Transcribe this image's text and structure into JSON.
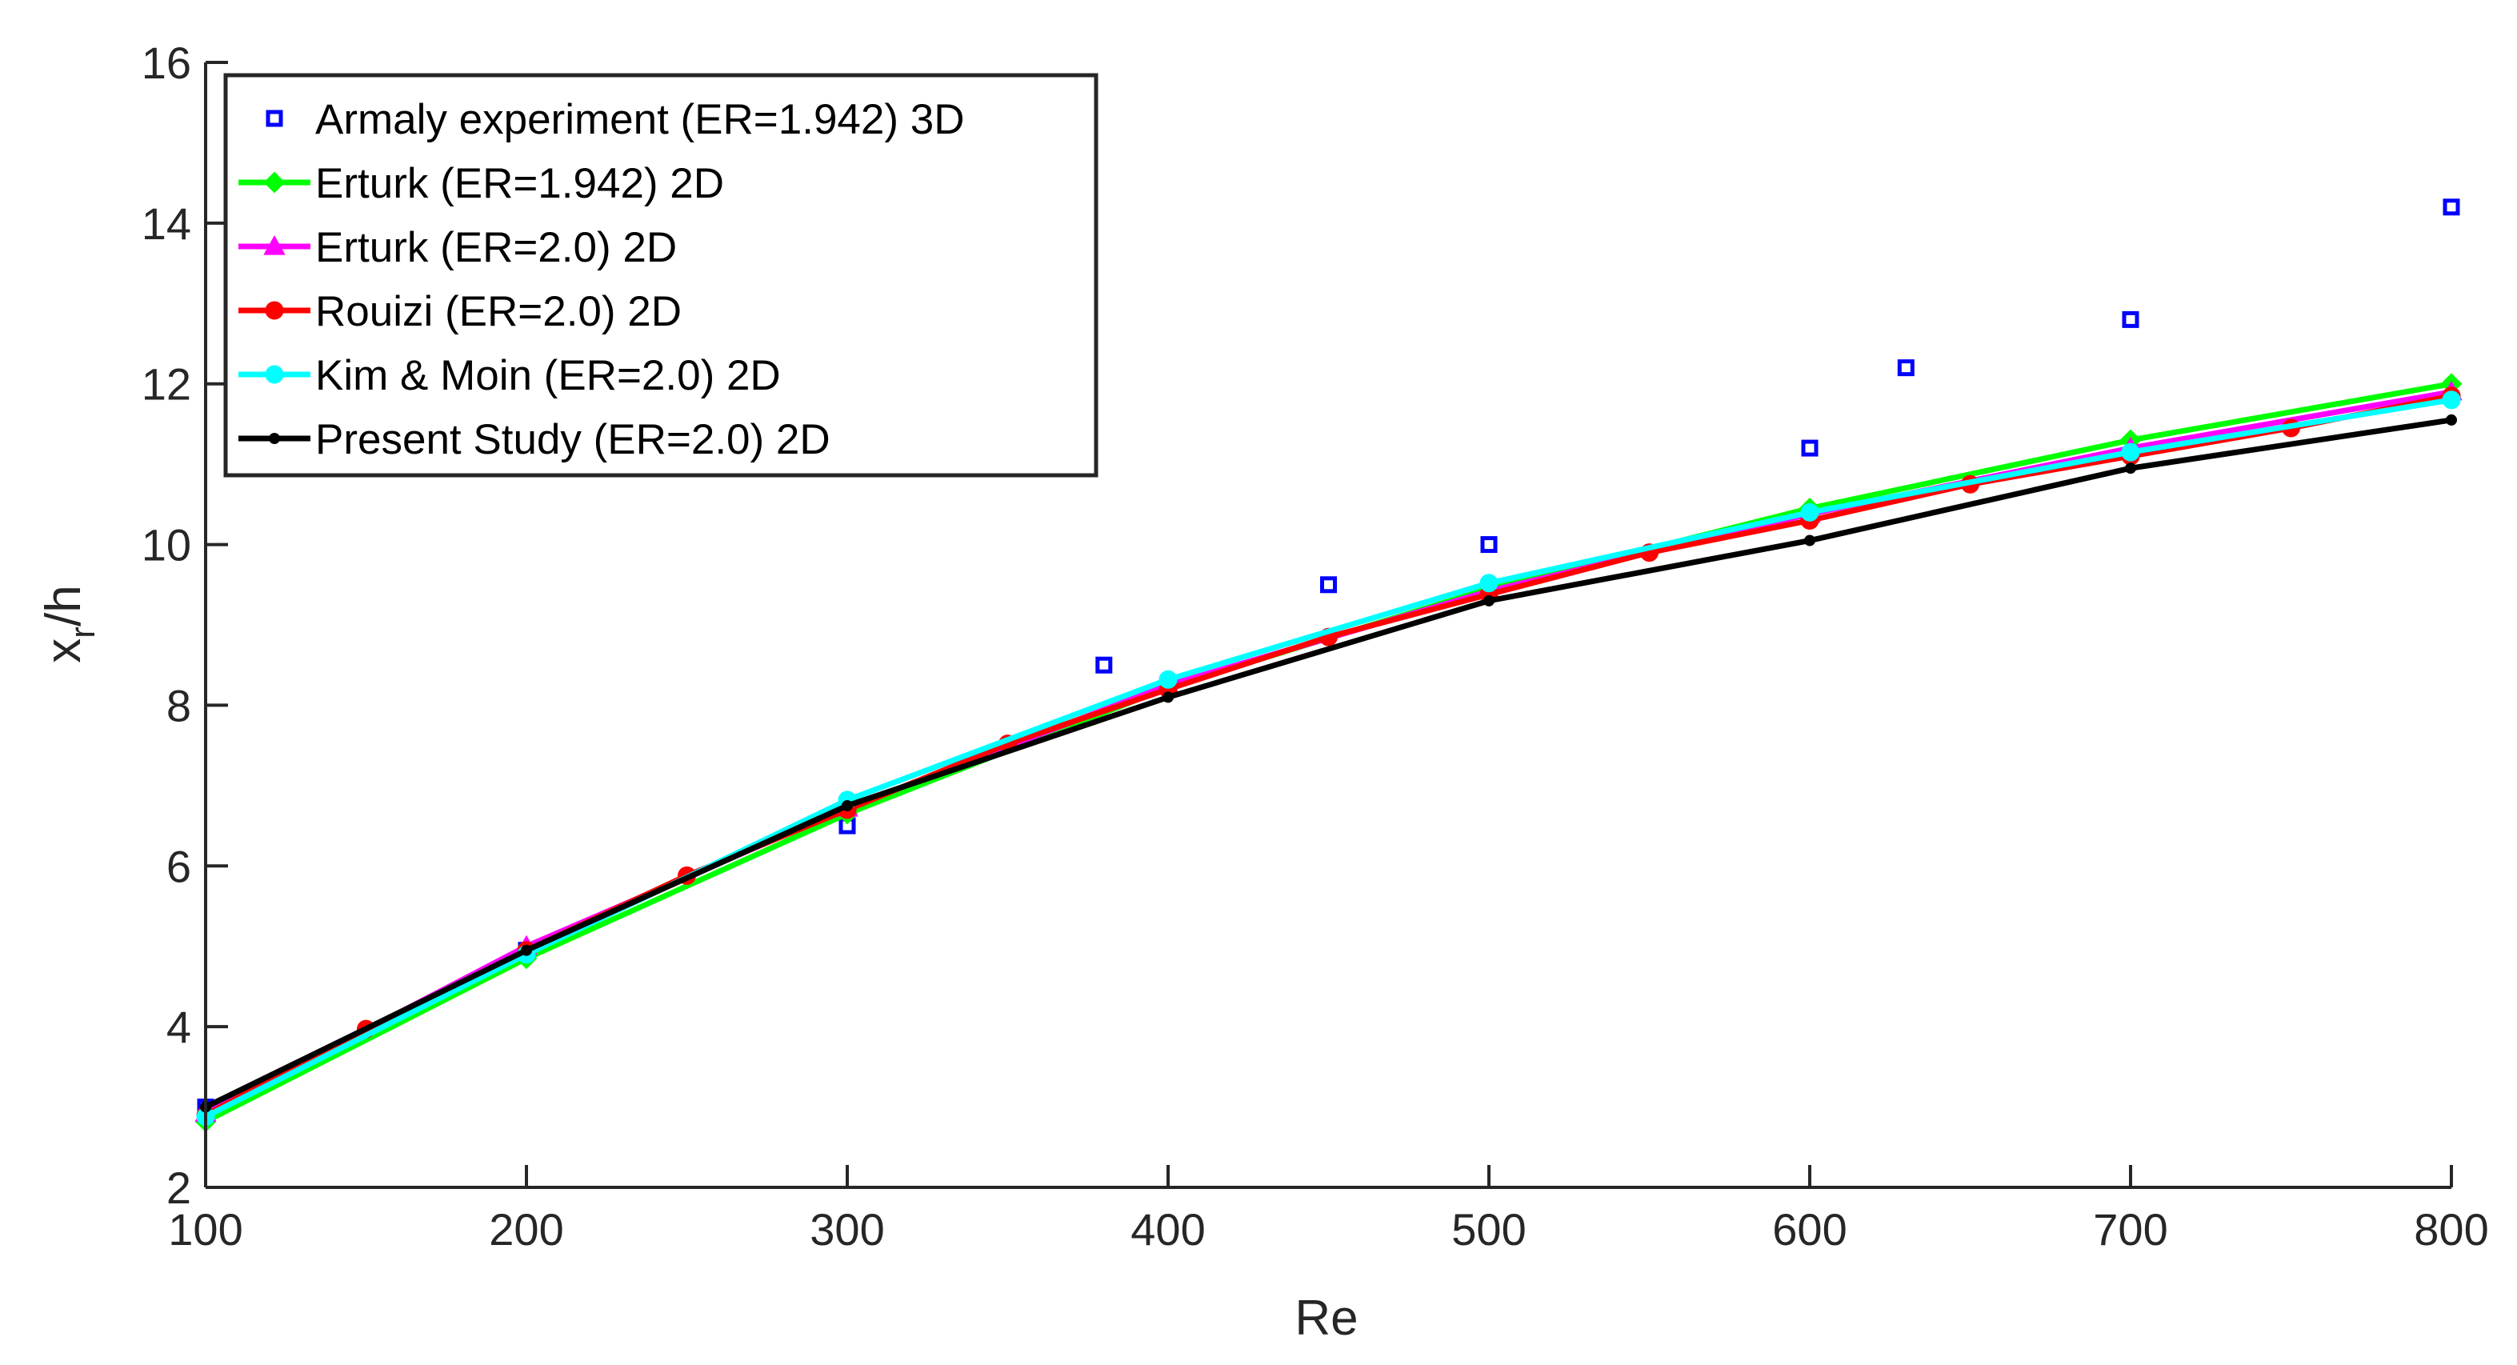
{
  "chart_data": {
    "type": "line",
    "xlabel": "Re",
    "ylabel_main": "x",
    "ylabel_sub": "r",
    "ylabel_tail": "/h",
    "xlim": [
      100,
      800
    ],
    "ylim": [
      2,
      16
    ],
    "xticks": [
      100,
      200,
      300,
      400,
      500,
      600,
      700,
      800
    ],
    "yticks": [
      2,
      4,
      6,
      8,
      10,
      12,
      14,
      16
    ],
    "grid": false,
    "legend_position": "top-left",
    "series": [
      {
        "name": "Armaly experiment (ER=1.942) 3D",
        "color": "#0000ff",
        "style": "markers",
        "marker": "square",
        "x": [
          100,
          200,
          300,
          380,
          450,
          500,
          600,
          630,
          700,
          800
        ],
        "y": [
          3.0,
          4.95,
          6.5,
          8.5,
          9.5,
          10.0,
          11.2,
          12.2,
          12.8,
          14.2
        ]
      },
      {
        "name": "Erturk (ER=1.942) 2D",
        "color": "#00ff00",
        "style": "line",
        "marker": "diamond",
        "x": [
          100,
          200,
          300,
          400,
          500,
          600,
          700,
          800
        ],
        "y": [
          2.82,
          4.85,
          6.65,
          8.22,
          9.45,
          10.45,
          11.3,
          12.0
        ]
      },
      {
        "name": "Erturk (ER=2.0) 2D",
        "color": "#ff00ff",
        "style": "line",
        "marker": "triangle",
        "x": [
          100,
          200,
          300,
          400,
          500,
          600,
          700,
          800
        ],
        "y": [
          2.92,
          5.0,
          6.72,
          8.25,
          9.42,
          10.38,
          11.2,
          11.9
        ]
      },
      {
        "name": "Rouizi (ER=2.0) 2D",
        "color": "#ff0000",
        "style": "line",
        "marker": "circle",
        "x": [
          100,
          150,
          200,
          250,
          300,
          350,
          400,
          450,
          500,
          550,
          600,
          650,
          700,
          750,
          800
        ],
        "y": [
          2.9,
          3.97,
          4.95,
          5.88,
          6.7,
          7.52,
          8.2,
          8.85,
          9.38,
          9.9,
          10.3,
          10.75,
          11.1,
          11.45,
          11.85
        ]
      },
      {
        "name": "Kim & Moin (ER=2.0) 2D",
        "color": "#00ffff",
        "style": "line",
        "marker": "circle",
        "x": [
          100,
          200,
          300,
          400,
          500,
          600,
          700,
          800
        ],
        "y": [
          2.88,
          4.9,
          6.82,
          8.32,
          9.52,
          10.4,
          11.15,
          11.8
        ]
      },
      {
        "name": "Present Study (ER=2.0) 2D",
        "color": "#000000",
        "style": "line",
        "marker": "dot",
        "x": [
          100,
          200,
          300,
          400,
          500,
          600,
          700,
          800
        ],
        "y": [
          3.0,
          4.95,
          6.75,
          8.1,
          9.3,
          10.05,
          10.95,
          11.55
        ]
      }
    ]
  }
}
